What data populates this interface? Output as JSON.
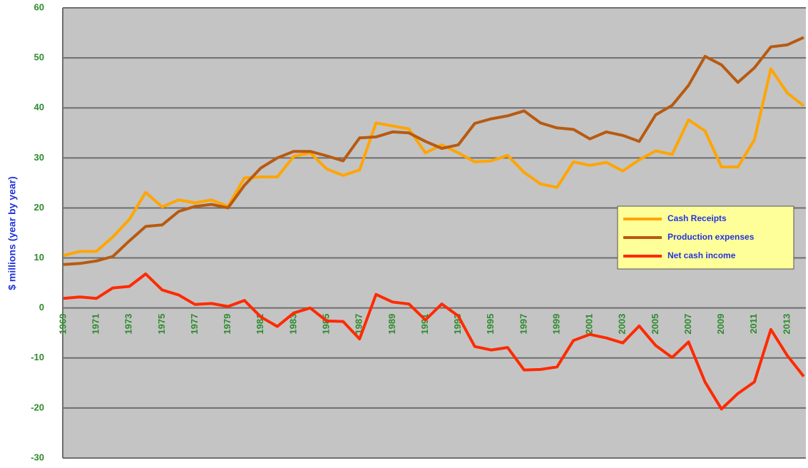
{
  "chart_data": {
    "type": "line",
    "y_label": "$ millions (year by year)",
    "categories": [
      "1969",
      null,
      "1971",
      null,
      "1973",
      null,
      "1975",
      null,
      "1977",
      null,
      "1979",
      null,
      "1981",
      null,
      "1983",
      null,
      "1985",
      null,
      "1987",
      null,
      "1989",
      null,
      "1991",
      null,
      "1993",
      null,
      "1995",
      null,
      "1997",
      null,
      "1999",
      null,
      "2001",
      null,
      "2003",
      null,
      "2005",
      null,
      "2007",
      null,
      "2009",
      null,
      "2011",
      null,
      "2013",
      null
    ],
    "series": [
      {
        "name": "Cash Receipts",
        "color": "#ffa500",
        "values": [
          10.5,
          11.3,
          11.3,
          14.2,
          17.7,
          23.1,
          20.2,
          21.6,
          21.0,
          21.6,
          20.3,
          26.0,
          26.2,
          26.2,
          30.3,
          31.0,
          27.8,
          26.5,
          27.6,
          37.0,
          36.4,
          35.8,
          31.0,
          32.6,
          31.0,
          29.2,
          29.4,
          30.5,
          27.1,
          24.8,
          24.1,
          29.2,
          28.5,
          29.1,
          27.4,
          29.6,
          31.4,
          30.7,
          37.6,
          35.4,
          28.2,
          28.2,
          33.6,
          47.8,
          43.0,
          40.4
        ]
      },
      {
        "name": "Production expenses",
        "color": "#b85a10",
        "values": [
          8.7,
          8.9,
          9.4,
          10.3,
          13.4,
          16.3,
          16.6,
          19.3,
          20.3,
          20.7,
          20.0,
          24.5,
          28.0,
          30.0,
          31.3,
          31.3,
          30.4,
          29.4,
          34.0,
          34.2,
          35.2,
          35.0,
          33.3,
          31.9,
          32.6,
          36.9,
          37.8,
          38.4,
          39.4,
          37.0,
          36.0,
          35.7,
          33.8,
          35.2,
          34.5,
          33.3,
          38.6,
          40.5,
          44.5,
          50.3,
          48.6,
          45.1,
          48.0,
          52.2,
          52.6,
          54.1
        ]
      },
      {
        "name": "Net cash income",
        "color": "#ff2a00",
        "values": [
          1.9,
          2.2,
          1.9,
          4.0,
          4.3,
          6.8,
          3.6,
          2.6,
          0.7,
          0.9,
          0.3,
          1.5,
          -1.8,
          -3.7,
          -1.0,
          0.0,
          -2.6,
          -2.7,
          -6.2,
          2.7,
          1.2,
          0.8,
          -2.4,
          0.8,
          -1.6,
          -7.7,
          -8.4,
          -7.9,
          -12.4,
          -12.3,
          -11.8,
          -6.5,
          -5.3,
          -6.0,
          -7.0,
          -3.6,
          -7.5,
          -9.9,
          -6.8,
          -14.8,
          -20.2,
          -17.1,
          -14.8,
          -4.3,
          -9.5,
          -13.7
        ]
      }
    ],
    "ylim": [
      -30,
      60
    ],
    "yticks": [
      -30,
      -20,
      -10,
      0,
      10,
      20,
      30,
      40,
      50,
      60
    ],
    "grid": true,
    "legend": "right"
  }
}
